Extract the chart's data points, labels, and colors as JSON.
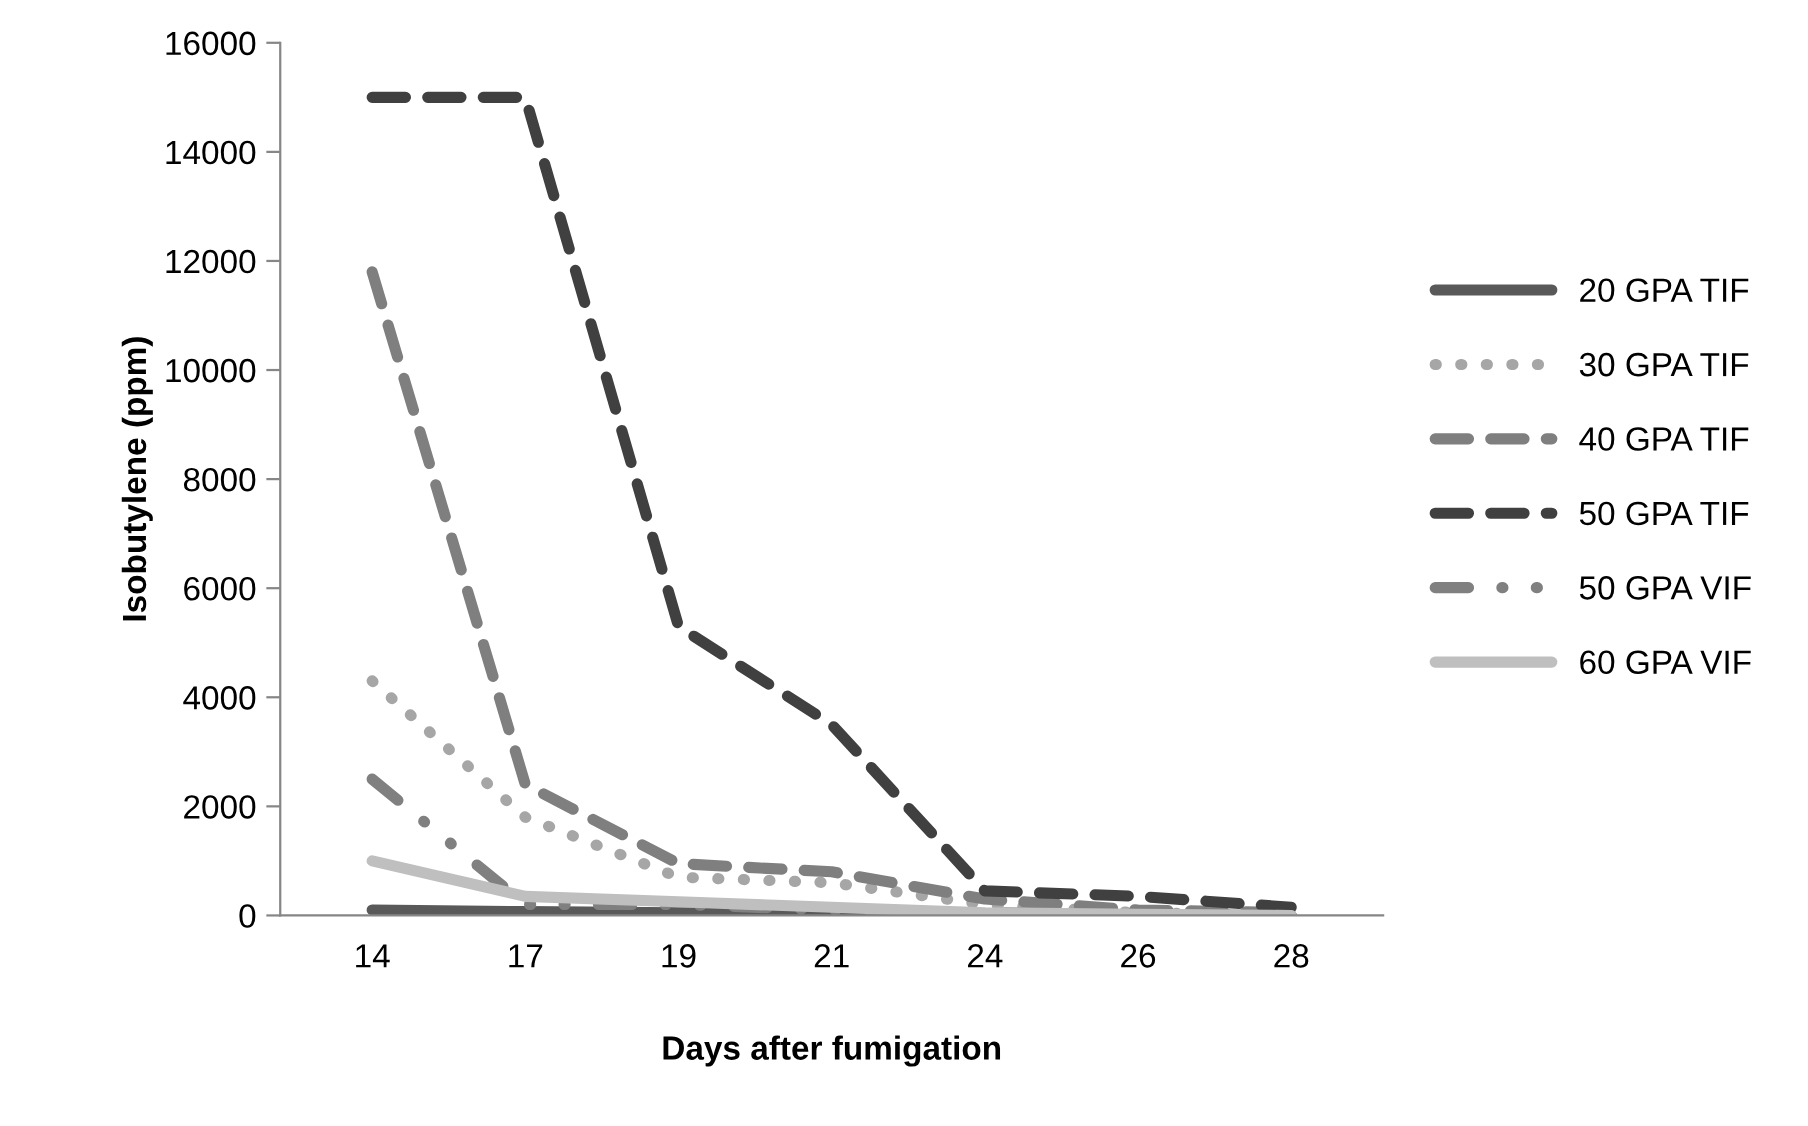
{
  "chart_data": {
    "type": "line",
    "xlabel": "Days after fumigation",
    "ylabel": "Isobutylene (ppm)",
    "categories": [
      "14",
      "17",
      "19",
      "21",
      "24",
      "26",
      "28"
    ],
    "series": [
      {
        "name": "20 GPA TIF",
        "color": "#595959",
        "line_style": "solid",
        "values": [
          100,
          70,
          50,
          30,
          10,
          5,
          0
        ]
      },
      {
        "name": "30 GPA TIF",
        "color": "#a6a6a6",
        "line_style": "dotted",
        "values": [
          4300,
          1800,
          700,
          600,
          200,
          50,
          0
        ]
      },
      {
        "name": "40 GPA TIF",
        "color": "#7f7f7f",
        "line_style": "dashed",
        "values": [
          11800,
          2400,
          950,
          800,
          300,
          100,
          50
        ]
      },
      {
        "name": "50 GPA TIF",
        "color": "#404040",
        "line_style": "dashed",
        "values": [
          15000,
          15000,
          5300,
          3500,
          450,
          350,
          150
        ]
      },
      {
        "name": "50 GPA VIF",
        "color": "#808080",
        "line_style": "dashdot",
        "values": [
          2500,
          200,
          200,
          100,
          50,
          20,
          0
        ]
      },
      {
        "name": "60 GPA VIF",
        "color": "#bfbfbf",
        "line_style": "solid",
        "values": [
          1000,
          350,
          250,
          150,
          50,
          20,
          0
        ]
      }
    ],
    "ylim": [
      0,
      16000
    ],
    "yticks": [
      0,
      2000,
      4000,
      6000,
      8000,
      10000,
      12000,
      14000,
      16000
    ],
    "grid": false,
    "legend": "right",
    "marker": "none"
  }
}
